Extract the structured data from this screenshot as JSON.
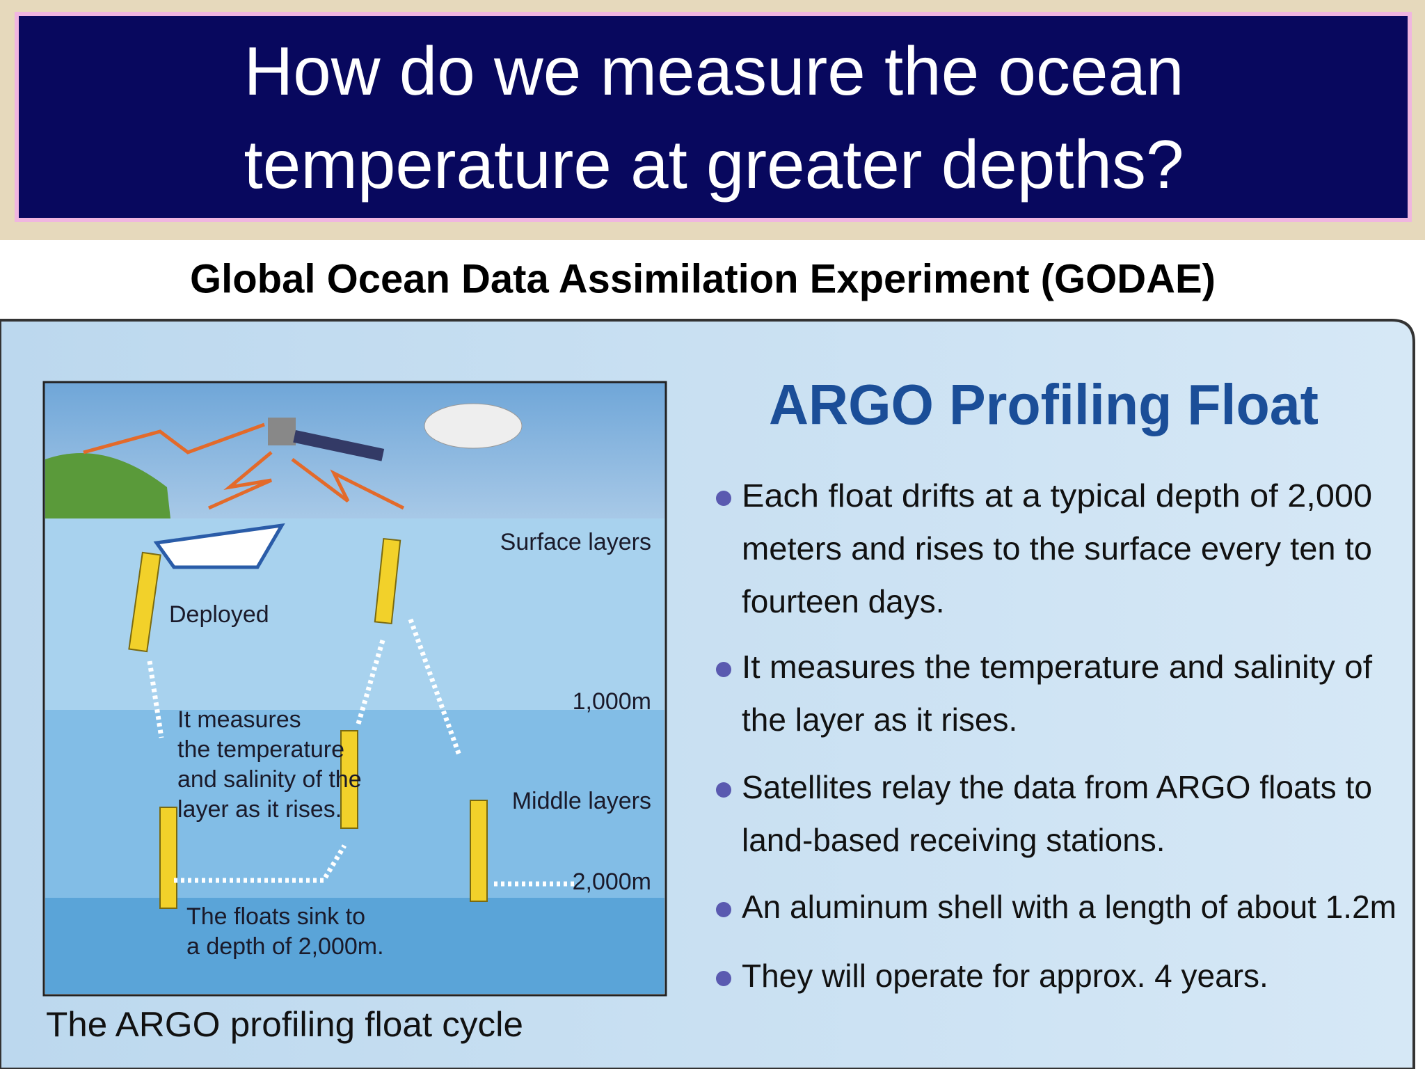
{
  "header": {
    "title_lines": [
      "How do we measure the ocean",
      "temperature at greater depths?"
    ]
  },
  "subtitle": "Global Ocean Data Assimilation Experiment (GODAE)",
  "diagram": {
    "labels": {
      "surface": "Surface layers",
      "deployed": "Deployed",
      "depth1": "1,000m",
      "middle": "Middle layers",
      "depth2": "2,000m"
    },
    "measure_note": [
      "It measures",
      "the temperature",
      "and salinity of the",
      "layer as it rises."
    ],
    "sink_note": [
      "The floats sink to",
      "a depth of 2,000m."
    ],
    "caption": "The ARGO profiling float cycle"
  },
  "panel": {
    "title": "ARGO Profiling Float",
    "bullets": [
      [
        "Each float drifts at a typical depth of 2,000",
        "meters and rises to the surface every ten to",
        "fourteen days."
      ],
      [
        "It measures the temperature and salinity of",
        "the layer as it rises."
      ],
      [
        "Satellites relay the data from ARGO floats to",
        "land-based receiving stations."
      ],
      [
        "An aluminum shell with a length of about 1.2m"
      ],
      [
        "They will operate for approx. 4 years."
      ]
    ]
  }
}
